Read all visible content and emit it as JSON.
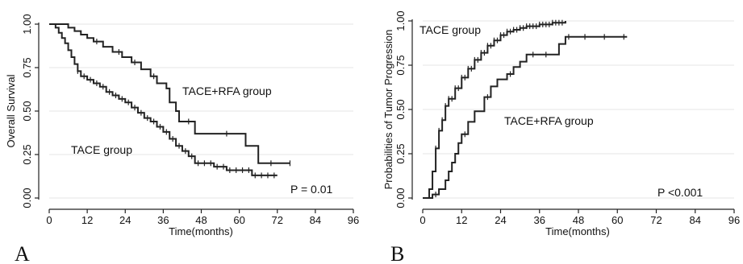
{
  "panels": [
    {
      "letter": "A",
      "ylabel": "Overall Survival",
      "xlabel": "Time(months)",
      "pvalue": "P = 0.01"
    },
    {
      "letter": "B",
      "ylabel": "Probabilities of Tumor Progression",
      "xlabel": "Time(months)",
      "pvalue": "P <0.001"
    }
  ],
  "chart_data": [
    {
      "type": "line",
      "subtype": "kaplan-meier",
      "title": "",
      "xlabel": "Time(months)",
      "ylabel": "Overall Survival",
      "xlim": [
        0,
        96
      ],
      "ylim": [
        0,
        1
      ],
      "xticks": [
        0,
        12,
        24,
        36,
        48,
        60,
        72,
        84,
        96
      ],
      "yticks": [
        0,
        0.25,
        0.5,
        0.75,
        1
      ],
      "ytick_labels": [
        "0.00",
        "0.25",
        "0.50",
        "0.75",
        "1.00"
      ],
      "grid": true,
      "annotations": [
        "P = 0.01"
      ],
      "series": [
        {
          "name": "TACE+RFA group",
          "color": "#222222",
          "steps": [
            [
              0,
              1.0
            ],
            [
              6,
              0.98
            ],
            [
              8,
              0.96
            ],
            [
              10,
              0.94
            ],
            [
              12,
              0.92
            ],
            [
              14,
              0.9
            ],
            [
              17,
              0.87
            ],
            [
              20,
              0.84
            ],
            [
              23,
              0.81
            ],
            [
              26,
              0.78
            ],
            [
              29,
              0.74
            ],
            [
              32,
              0.7
            ],
            [
              34,
              0.66
            ],
            [
              37,
              0.63
            ],
            [
              38,
              0.55
            ],
            [
              40,
              0.5
            ],
            [
              41,
              0.44
            ],
            [
              46,
              0.37
            ],
            [
              62,
              0.3
            ],
            [
              66,
              0.2
            ],
            [
              76,
              0.2
            ]
          ],
          "censor_x": [
            15,
            22,
            27,
            33,
            44,
            56,
            70,
            76
          ]
        },
        {
          "name": "TACE group",
          "color": "#222222",
          "steps": [
            [
              0,
              1.0
            ],
            [
              2,
              0.98
            ],
            [
              3,
              0.95
            ],
            [
              4,
              0.92
            ],
            [
              5,
              0.89
            ],
            [
              6,
              0.85
            ],
            [
              7,
              0.81
            ],
            [
              8,
              0.77
            ],
            [
              9,
              0.73
            ],
            [
              10,
              0.7
            ],
            [
              12,
              0.68
            ],
            [
              14,
              0.66
            ],
            [
              16,
              0.64
            ],
            [
              18,
              0.61
            ],
            [
              20,
              0.59
            ],
            [
              22,
              0.57
            ],
            [
              24,
              0.55
            ],
            [
              26,
              0.52
            ],
            [
              28,
              0.49
            ],
            [
              30,
              0.46
            ],
            [
              32,
              0.44
            ],
            [
              34,
              0.41
            ],
            [
              36,
              0.38
            ],
            [
              38,
              0.34
            ],
            [
              40,
              0.3
            ],
            [
              42,
              0.27
            ],
            [
              44,
              0.24
            ],
            [
              46,
              0.2
            ],
            [
              52,
              0.18
            ],
            [
              56,
              0.16
            ],
            [
              64,
              0.13
            ],
            [
              72,
              0.13
            ]
          ],
          "censor_x": [
            9,
            11,
            13,
            15,
            17,
            19,
            21,
            23,
            25,
            27,
            29,
            31,
            33,
            35,
            37,
            39,
            41,
            43,
            45,
            47,
            49,
            51,
            53,
            55,
            57,
            59,
            61,
            63,
            65,
            67,
            69,
            71
          ]
        }
      ]
    },
    {
      "type": "line",
      "subtype": "kaplan-meier",
      "title": "",
      "xlabel": "Time(months)",
      "ylabel": "Probabilities of Tumor Progression",
      "xlim": [
        0,
        96
      ],
      "ylim": [
        0,
        1
      ],
      "xticks": [
        0,
        12,
        24,
        36,
        48,
        60,
        72,
        84,
        96
      ],
      "yticks": [
        0,
        0.25,
        0.5,
        0.75,
        1
      ],
      "ytick_labels": [
        "0.00",
        "0.25",
        "0.50",
        "0.75",
        "1.00"
      ],
      "grid": true,
      "annotations": [
        "P <0.001"
      ],
      "series": [
        {
          "name": "TACE group",
          "color": "#222222",
          "steps": [
            [
              0,
              0.0
            ],
            [
              2,
              0.05
            ],
            [
              3,
              0.15
            ],
            [
              4,
              0.28
            ],
            [
              5,
              0.38
            ],
            [
              6,
              0.44
            ],
            [
              7,
              0.52
            ],
            [
              8,
              0.56
            ],
            [
              10,
              0.62
            ],
            [
              12,
              0.68
            ],
            [
              14,
              0.73
            ],
            [
              16,
              0.78
            ],
            [
              18,
              0.82
            ],
            [
              20,
              0.86
            ],
            [
              22,
              0.89
            ],
            [
              24,
              0.92
            ],
            [
              26,
              0.94
            ],
            [
              28,
              0.95
            ],
            [
              30,
              0.96
            ],
            [
              32,
              0.97
            ],
            [
              36,
              0.98
            ],
            [
              40,
              0.99
            ],
            [
              44,
              1.0
            ]
          ],
          "censor_x": [
            4,
            5,
            6,
            7,
            8,
            9,
            10,
            11,
            12,
            13,
            14,
            15,
            16,
            17,
            18,
            19,
            20,
            21,
            22,
            23,
            24,
            25,
            26,
            27,
            28,
            29,
            30,
            31,
            32,
            33,
            34,
            35,
            36,
            37,
            38,
            39,
            40,
            41,
            42,
            43
          ]
        },
        {
          "name": "TACE+RFA group",
          "color": "#222222",
          "steps": [
            [
              0,
              0.0
            ],
            [
              3,
              0.02
            ],
            [
              5,
              0.05
            ],
            [
              7,
              0.1
            ],
            [
              8,
              0.15
            ],
            [
              9,
              0.2
            ],
            [
              10,
              0.25
            ],
            [
              11,
              0.31
            ],
            [
              12,
              0.36
            ],
            [
              14,
              0.43
            ],
            [
              16,
              0.49
            ],
            [
              19,
              0.57
            ],
            [
              21,
              0.63
            ],
            [
              23,
              0.67
            ],
            [
              26,
              0.7
            ],
            [
              28,
              0.74
            ],
            [
              30,
              0.77
            ],
            [
              32,
              0.81
            ],
            [
              42,
              0.87
            ],
            [
              44,
              0.91
            ],
            [
              63,
              0.91
            ]
          ],
          "censor_x": [
            4,
            13,
            20,
            27,
            34,
            38,
            45,
            50,
            56,
            62
          ]
        }
      ]
    }
  ]
}
